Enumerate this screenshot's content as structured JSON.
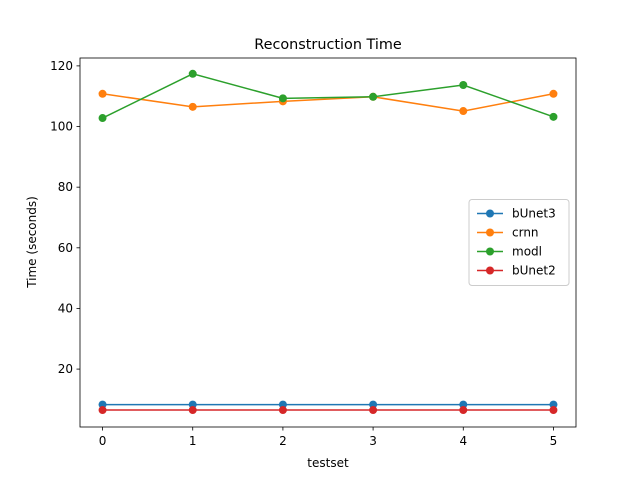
{
  "chart_data": {
    "type": "line",
    "title": "Reconstruction Time",
    "xlabel": "testset",
    "ylabel": "Time (seconds)",
    "x": [
      0,
      1,
      2,
      3,
      4,
      5
    ],
    "series": [
      {
        "name": "bUnet3",
        "color": "#1f77b4",
        "values": [
          8.3,
          8.3,
          8.3,
          8.3,
          8.3,
          8.3
        ]
      },
      {
        "name": "crnn",
        "color": "#ff7f0e",
        "values": [
          110.8,
          106.5,
          108.3,
          109.8,
          105.1,
          110.8
        ]
      },
      {
        "name": "modl",
        "color": "#2ca02c",
        "values": [
          102.8,
          117.4,
          109.3,
          109.8,
          113.7,
          103.2
        ]
      },
      {
        "name": "bUnet2",
        "color": "#d62728",
        "values": [
          6.5,
          6.5,
          6.5,
          6.5,
          6.5,
          6.5
        ]
      }
    ],
    "xlim": [
      -0.25,
      5.25
    ],
    "xticks": [
      0,
      1,
      2,
      3,
      4,
      5
    ],
    "ylim": [
      0.9,
      122.6
    ],
    "yticks": [
      20,
      40,
      60,
      80,
      100,
      120
    ],
    "grid": false,
    "legend": "center right"
  }
}
